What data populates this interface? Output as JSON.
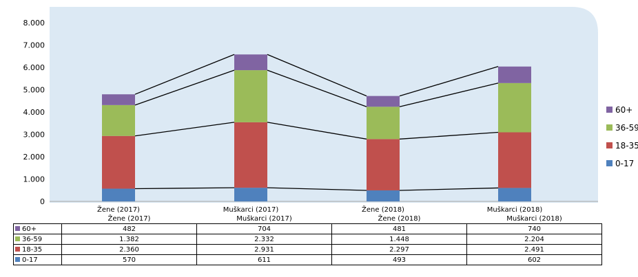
{
  "chart_data": {
    "type": "bar",
    "stacked": true,
    "categories": [
      "Žene (2017)",
      "Muškarci (2017)",
      "Žene (2018)",
      "Muškarci (2018)"
    ],
    "series": [
      {
        "name": "0-17",
        "values": [
          570,
          611,
          493,
          602
        ],
        "color": "#4f81bd"
      },
      {
        "name": "18-35",
        "values": [
          2360,
          2931,
          2297,
          2491
        ],
        "color": "#c0504d"
      },
      {
        "name": "36-59",
        "values": [
          1382,
          2332,
          1448,
          2204
        ],
        "color": "#9bbb59"
      },
      {
        "name": "60+",
        "values": [
          482,
          704,
          481,
          740
        ],
        "color": "#8064a2"
      }
    ],
    "y_ticks": [
      "0",
      "1.000",
      "2.000",
      "3.000",
      "4.000",
      "5.000",
      "6.000",
      "7.000",
      "8.000"
    ],
    "ylim": [
      0,
      8000
    ],
    "series_lines": true,
    "legend_position": "right",
    "grid": false,
    "plot_background": "#dce9f4"
  },
  "table": {
    "headers": [
      "Žene (2017)",
      "Muškarci (2017)",
      "Žene (2018)",
      "Muškarci (2018)"
    ],
    "rows": [
      {
        "label": "60+",
        "color": "#8064a2",
        "cells": [
          "482",
          "704",
          "481",
          "740"
        ]
      },
      {
        "label": "36-59",
        "color": "#9bbb59",
        "cells": [
          "1.382",
          "2.332",
          "1.448",
          "2.204"
        ]
      },
      {
        "label": "18-35",
        "color": "#c0504d",
        "cells": [
          "2.360",
          "2.931",
          "2.297",
          "2.491"
        ]
      },
      {
        "label": "0-17",
        "color": "#4f81bd",
        "cells": [
          "570",
          "611",
          "493",
          "602"
        ]
      }
    ]
  }
}
